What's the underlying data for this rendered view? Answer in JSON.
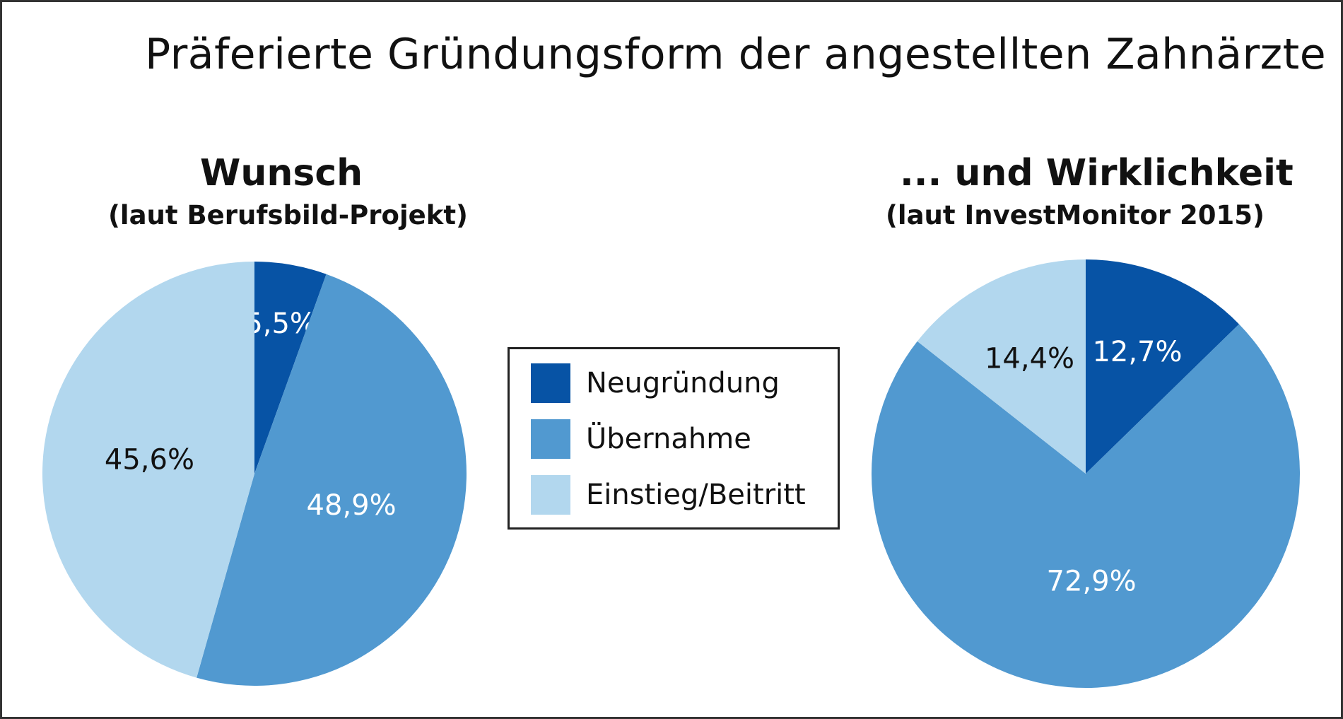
{
  "title": "Präferierte Gründungsform der angestellten Zahnärzte",
  "colors": {
    "neugruendung": "#0753a5",
    "uebernahme": "#5199d0",
    "einstieg": "#b2d7ee"
  },
  "legend": {
    "items": [
      {
        "label": "Neugründung",
        "color": "#0753a5"
      },
      {
        "label": "Übernahme",
        "color": "#5199d0"
      },
      {
        "label": "Einstieg/Beitritt",
        "color": "#b2d7ee"
      }
    ]
  },
  "chart_data": [
    {
      "type": "pie",
      "title": "Wunsch",
      "subtitle": "(laut Berufsbild-Projekt)",
      "categories": [
        "Neugründung",
        "Übernahme",
        "Einstieg/Beitritt"
      ],
      "values": [
        5.5,
        48.9,
        45.6
      ],
      "labels": [
        "5,5%",
        "48,9%",
        "45,6%"
      ],
      "label_colors": [
        "#ffffff",
        "#ffffff",
        "#111111"
      ]
    },
    {
      "type": "pie",
      "title": "... und Wirklichkeit",
      "subtitle": "(laut InvestMonitor 2015)",
      "categories": [
        "Neugründung",
        "Übernahme",
        "Einstieg/Beitritt"
      ],
      "values": [
        12.7,
        72.9,
        14.4
      ],
      "labels": [
        "12,7%",
        "72,9%",
        "14,4%"
      ],
      "label_colors": [
        "#ffffff",
        "#ffffff",
        "#111111"
      ]
    }
  ]
}
